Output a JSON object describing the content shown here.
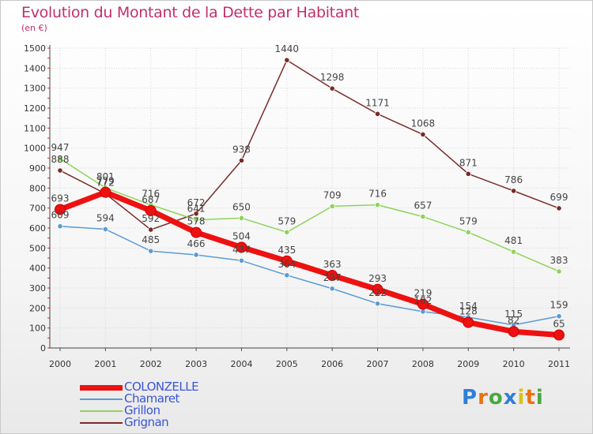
{
  "header": {
    "title": "Evolution du Montant de la Dette par Habitant",
    "subtitle": "(en €)"
  },
  "logo": {
    "text": "Proxiti",
    "colors": [
      "#2f7fd8",
      "#e8730f",
      "#49a842",
      "#2f7fd8",
      "#d8c21a",
      "#e8730f",
      "#49a842"
    ]
  },
  "chart_data": {
    "type": "line",
    "categories": [
      "2000",
      "2001",
      "2002",
      "2003",
      "2004",
      "2005",
      "2006",
      "2007",
      "2008",
      "2009",
      "2010",
      "2011"
    ],
    "ylim": [
      0,
      1500
    ],
    "yticks": [
      0,
      100,
      200,
      300,
      400,
      500,
      600,
      700,
      800,
      900,
      1000,
      1100,
      1200,
      1300,
      1400,
      1500
    ],
    "grid": true,
    "legend_position": "bottom-left",
    "series": [
      {
        "name": "Grignan",
        "color": "#7a2a2a",
        "values": [
          888,
          772,
          592,
          672,
          938,
          1440,
          1298,
          1171,
          1068,
          871,
          786,
          699
        ],
        "labels": [
          "888",
          "772",
          "592",
          "672",
          "938",
          "1440",
          "1298",
          "1171",
          "1068",
          "871",
          "786",
          "699"
        ]
      },
      {
        "name": "Grillon",
        "color": "#8fd35a",
        "values": [
          947,
          801,
          716,
          641,
          650,
          579,
          709,
          716,
          657,
          579,
          481,
          383
        ],
        "labels": [
          "947",
          "801",
          "716",
          "641",
          "650",
          "579",
          "709",
          "716",
          "657",
          "579",
          "481",
          "383"
        ]
      },
      {
        "name": "Chamaret",
        "color": "#5b9bd5",
        "values": [
          609,
          594,
          485,
          466,
          437,
          364,
          297,
          222,
          182,
          154,
          115,
          159
        ],
        "labels": [
          "609",
          "594",
          "485",
          "466",
          "437",
          "364",
          "297",
          "222",
          "182",
          "154",
          "115",
          "159"
        ]
      },
      {
        "name": "COLONZELLE",
        "color": "#ee1111",
        "values": [
          693,
          779,
          687,
          578,
          504,
          435,
          363,
          293,
          219,
          128,
          82,
          65
        ],
        "labels": [
          "693",
          "779",
          "687",
          "578",
          "504",
          "435",
          "363",
          "293",
          "219",
          "128",
          "82",
          "65"
        ]
      }
    ],
    "legend": [
      {
        "name": "COLONZELLE",
        "color": "#ee1111",
        "text_color": "#3a55d8"
      },
      {
        "name": "Chamaret",
        "color": "#5b9bd5",
        "text_color": "#3a55d8"
      },
      {
        "name": "Grillon",
        "color": "#8fd35a",
        "text_color": "#3a55d8"
      },
      {
        "name": "Grignan",
        "color": "#7a2a2a",
        "text_color": "#3a55d8"
      }
    ]
  }
}
